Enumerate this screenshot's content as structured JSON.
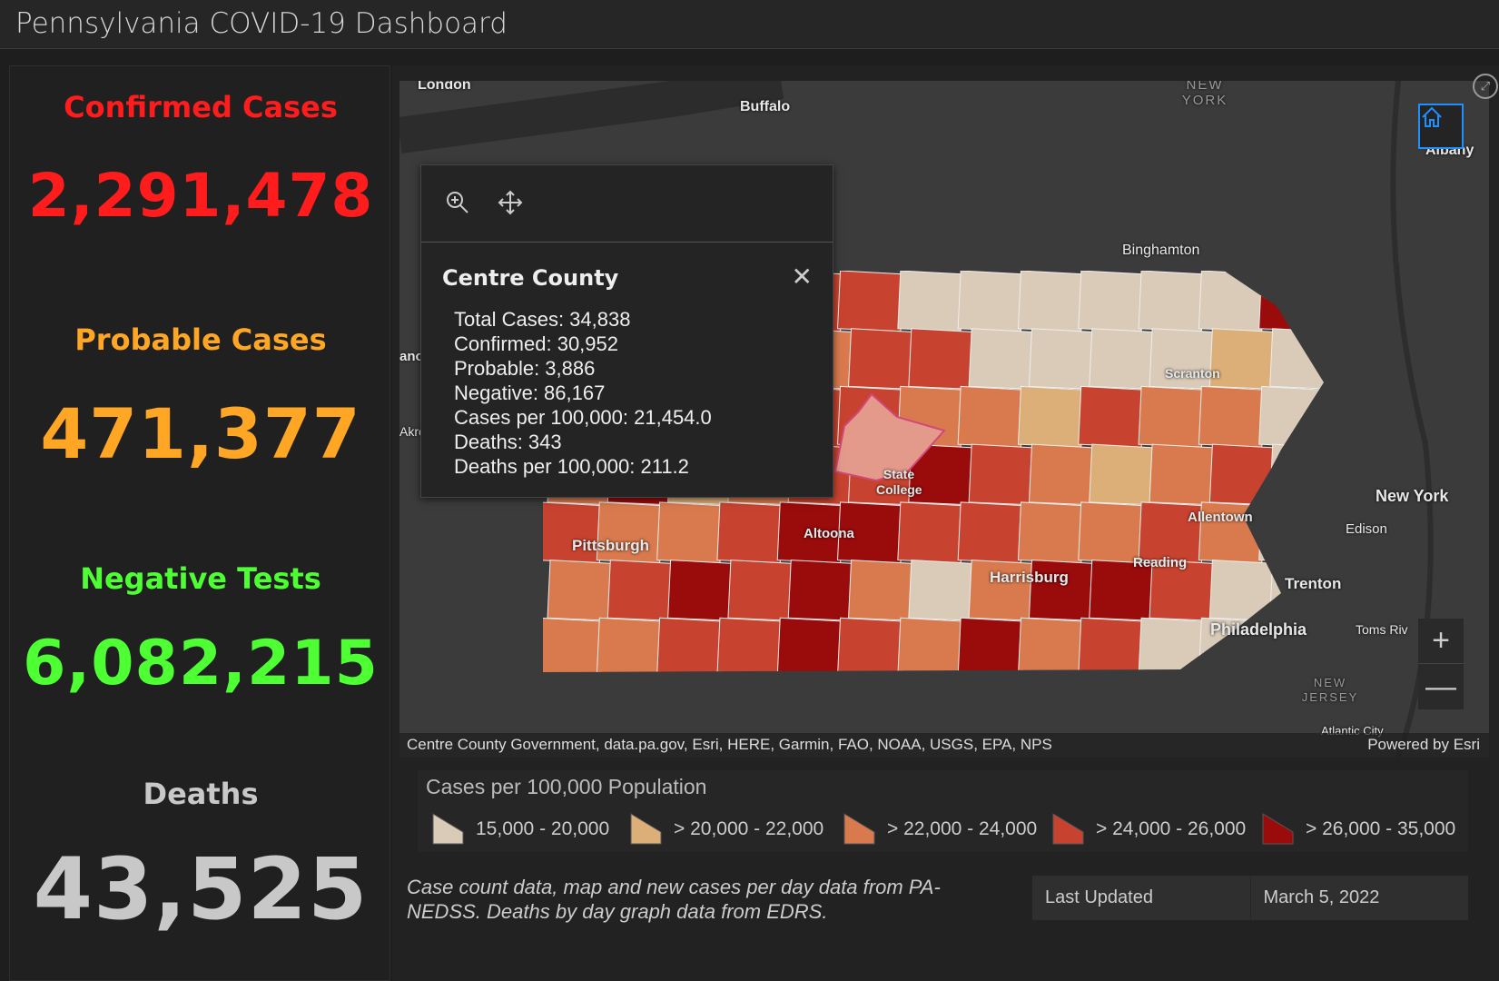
{
  "header": {
    "title": "Pennsylvania COVID-19 Dashboard"
  },
  "stats": {
    "confirmed": {
      "label": "Confirmed Cases",
      "value": "2,291,478",
      "color": "#ff1c1c"
    },
    "probable": {
      "label": "Probable Cases",
      "value": "471,377",
      "color": "#ffa624"
    },
    "negative": {
      "label": "Negative Tests",
      "value": "6,082,215",
      "color": "#4dff33"
    },
    "deaths": {
      "label": "Deaths",
      "value": "43,525",
      "color": "#c8c8c8"
    }
  },
  "map": {
    "cities": [
      "London",
      "Buffalo",
      "NEW YORK",
      "Albany",
      "Binghamton",
      "Scranton",
      "State College",
      "Altoona",
      "Pittsburgh",
      "Allentown",
      "New York",
      "Edison",
      "Harrisburg",
      "Reading",
      "Trenton",
      "Philadelphia",
      "Toms Riv",
      "NEW JERSEY",
      "Atlantic City",
      "ano",
      "Akro"
    ],
    "attribution": "Centre County Government, data.pa.gov, Esri, HERE, Garmin, FAO, NOAA, USGS, EPA, NPS",
    "powered_by": "Powered by Esri",
    "zoom_in": "+",
    "zoom_out": "—",
    "popup": {
      "title": "Centre County",
      "fields": [
        "Total Cases: 34,838",
        "Confirmed: 30,952",
        "Probable: 3,886",
        "Negative: 86,167",
        "Cases per 100,000: 21,454.0",
        "Deaths: 343",
        "Deaths per 100,000: 211.2"
      ]
    }
  },
  "legend": {
    "title": "Cases per 100,000 Population",
    "items": [
      {
        "label": "15,000 - 20,000",
        "color": "#d9cbb8"
      },
      {
        "label": "> 20,000 - 22,000",
        "color": "#dcae78"
      },
      {
        "label": "> 22,000 - 24,000",
        "color": "#d97a4e"
      },
      {
        "label": "> 24,000 - 26,000",
        "color": "#c8432f"
      },
      {
        "label": "> 26,000 - 35,000",
        "color": "#9a0b0b"
      }
    ]
  },
  "footer": {
    "note": "Case count data, map and new cases per day data from PA-NEDSS.  Deaths by day graph data from EDRS.",
    "last_updated_label": "Last Updated",
    "last_updated_value": "March 5, 2022"
  }
}
